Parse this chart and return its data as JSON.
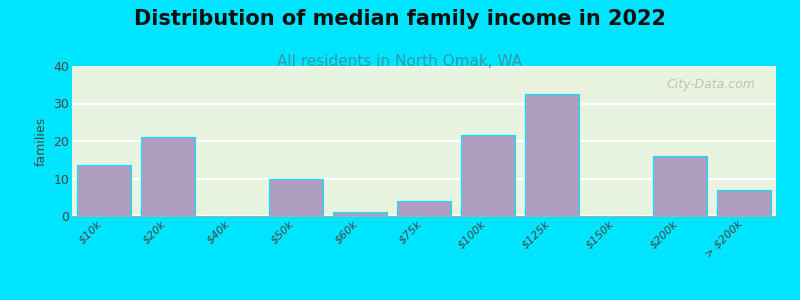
{
  "title": "Distribution of median family income in 2022",
  "subtitle": "All residents in North Omak, WA",
  "xlabel": "",
  "ylabel": "families",
  "categories": [
    "$10k",
    "$20k",
    "$40k",
    "$50k",
    "$60k",
    "$75k",
    "$100k",
    "$125k",
    "$150k",
    "$200k",
    "> $200k"
  ],
  "values": [
    13.5,
    21,
    0,
    10,
    1,
    4,
    21.5,
    32.5,
    0,
    16,
    7
  ],
  "ylim": [
    0,
    40
  ],
  "yticks": [
    0,
    10,
    20,
    30,
    40
  ],
  "bar_color": "#b09ec0",
  "bar_edge_color": "#ffffff",
  "bg_outer": "#00e5ff",
  "bg_plot_top": "#f0f4e8",
  "bg_plot_bottom": "#e8f4e8",
  "title_fontsize": 15,
  "subtitle_fontsize": 11,
  "subtitle_color": "#3399aa",
  "watermark": "City-Data.com",
  "grid_color": "#ffffff",
  "tick_label_fontsize": 8
}
